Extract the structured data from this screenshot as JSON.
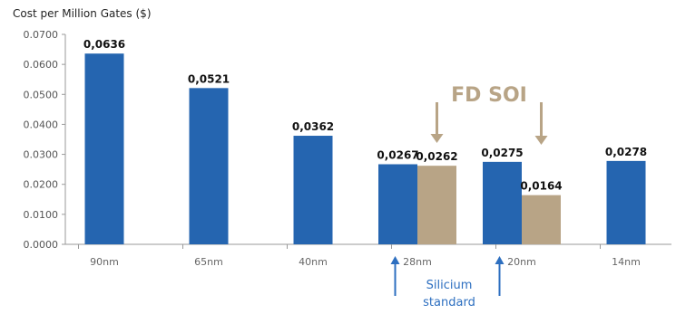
{
  "chart_data": {
    "type": "bar",
    "title": "Cost per Million Gates ($)",
    "xlabel": "",
    "ylabel": "",
    "ylim": [
      0,
      0.07
    ],
    "yticks": [
      "0.0000",
      "0.0100",
      "0.0200",
      "0.0300",
      "0.0400",
      "0.0500",
      "0.0600",
      "0.0700"
    ],
    "grid": false,
    "categories": [
      "90nm",
      "65nm",
      "40nm",
      "28nm",
      "20nm",
      "14nm"
    ],
    "series": [
      {
        "name": "",
        "color": "#2565b0",
        "values": [
          0.0636,
          0.0521,
          0.0362,
          0.0267,
          0.0275,
          0.0278
        ],
        "labels": [
          "0,0636",
          "0,0521",
          "0,0362",
          "0,0267",
          "0,0275",
          "0,0278"
        ]
      },
      {
        "name": "",
        "color": "#b8a486",
        "values": [
          null,
          null,
          null,
          0.0262,
          0.0164,
          null
        ],
        "labels": [
          "",
          "",
          "",
          "0,0262",
          "0,0164",
          ""
        ]
      }
    ],
    "annotations": {
      "fd_soi": {
        "text": "FD SOI",
        "color": "#b8a486",
        "arrow_targets": [
          "28nm",
          "20nm"
        ]
      },
      "silicium_standard": {
        "text_lines": [
          "Silicium",
          "standard"
        ],
        "color": "#2d6fc0",
        "arrow_targets": [
          "28nm",
          "20nm"
        ]
      }
    }
  }
}
